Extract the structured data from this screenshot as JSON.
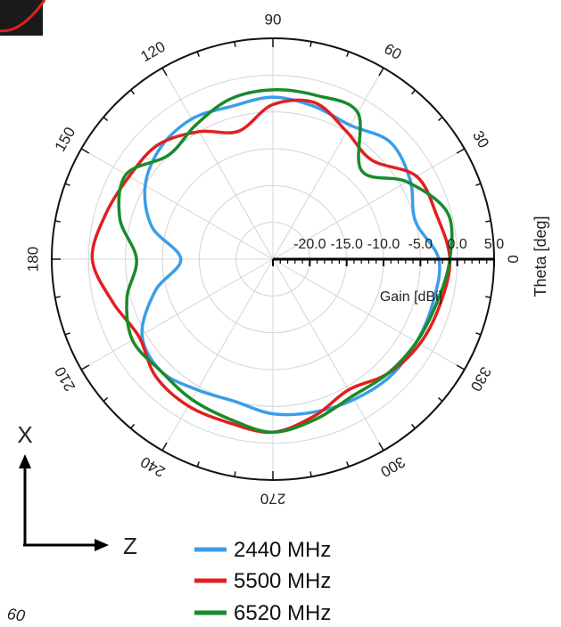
{
  "chart_data": {
    "type": "polar-line",
    "r_axis": {
      "label": "Gain [dBi]",
      "range": [
        -25,
        5
      ],
      "tick_labels": [
        "-20.0",
        "-15.0",
        "-10.0",
        "-5.0",
        "0.0",
        "5.0"
      ],
      "tick_values": [
        -20,
        -15,
        -10,
        -5,
        0,
        5
      ]
    },
    "angle_axis": {
      "label": "Theta [deg]",
      "tick_values": [
        0,
        30,
        60,
        90,
        120,
        150,
        180,
        210,
        240,
        270,
        300,
        330
      ],
      "tick_labels": [
        "0",
        "30",
        "60",
        "90",
        "120",
        "150",
        "180",
        "210",
        "240",
        "270",
        "300",
        "330"
      ]
    },
    "grid": true,
    "legend_position": "bottom",
    "series": [
      {
        "name": "2440 MHz",
        "color": "#3a9ee8",
        "theta": [
          0,
          15,
          30,
          45,
          60,
          75,
          90,
          105,
          120,
          135,
          150,
          165,
          180,
          195,
          210,
          225,
          240,
          255,
          270,
          285,
          300,
          315,
          330,
          345
        ],
        "gain": [
          -2.5,
          -5.0,
          -3.5,
          -2.5,
          -4.0,
          -3.5,
          -3.0,
          -3.5,
          -3.0,
          -3.5,
          -5.0,
          -8.0,
          -12.5,
          -8.5,
          -4.5,
          -3.5,
          -4.5,
          -5.0,
          -4.0,
          -3.5,
          -3.0,
          -2.5,
          -2.5,
          -2.5
        ]
      },
      {
        "name": "5500 MHz",
        "color": "#e02020",
        "theta": [
          0,
          15,
          30,
          45,
          60,
          75,
          90,
          105,
          120,
          135,
          150,
          165,
          180,
          195,
          210,
          225,
          240,
          255,
          270,
          285,
          300,
          315,
          330,
          345
        ],
        "gain": [
          -1.0,
          -2.0,
          -2.5,
          -6.0,
          -5.0,
          -3.0,
          -4.0,
          -7.0,
          -5.0,
          -3.0,
          -2.5,
          -1.5,
          -0.5,
          -2.5,
          -4.0,
          -2.5,
          -2.0,
          -2.0,
          -1.5,
          -3.0,
          -4.5,
          -3.0,
          -2.0,
          -1.5
        ]
      },
      {
        "name": "6520 MHz",
        "color": "#1a8a2a",
        "theta": [
          0,
          15,
          30,
          45,
          60,
          75,
          90,
          105,
          120,
          135,
          150,
          165,
          180,
          195,
          210,
          225,
          240,
          255,
          270,
          285,
          300,
          315,
          330,
          345
        ],
        "gain": [
          -1.0,
          -0.5,
          -4.0,
          -8.0,
          -2.0,
          -2.0,
          -2.0,
          -2.5,
          -4.0,
          -5.0,
          -2.0,
          -3.5,
          -6.5,
          -4.5,
          -3.0,
          -3.5,
          -3.0,
          -2.5,
          -1.5,
          -2.5,
          -3.5,
          -3.0,
          -2.5,
          -2.0
        ]
      }
    ]
  },
  "decorations": {
    "x_arrow_label": "X",
    "z_arrow_label": "Z",
    "corner_text": "60"
  }
}
